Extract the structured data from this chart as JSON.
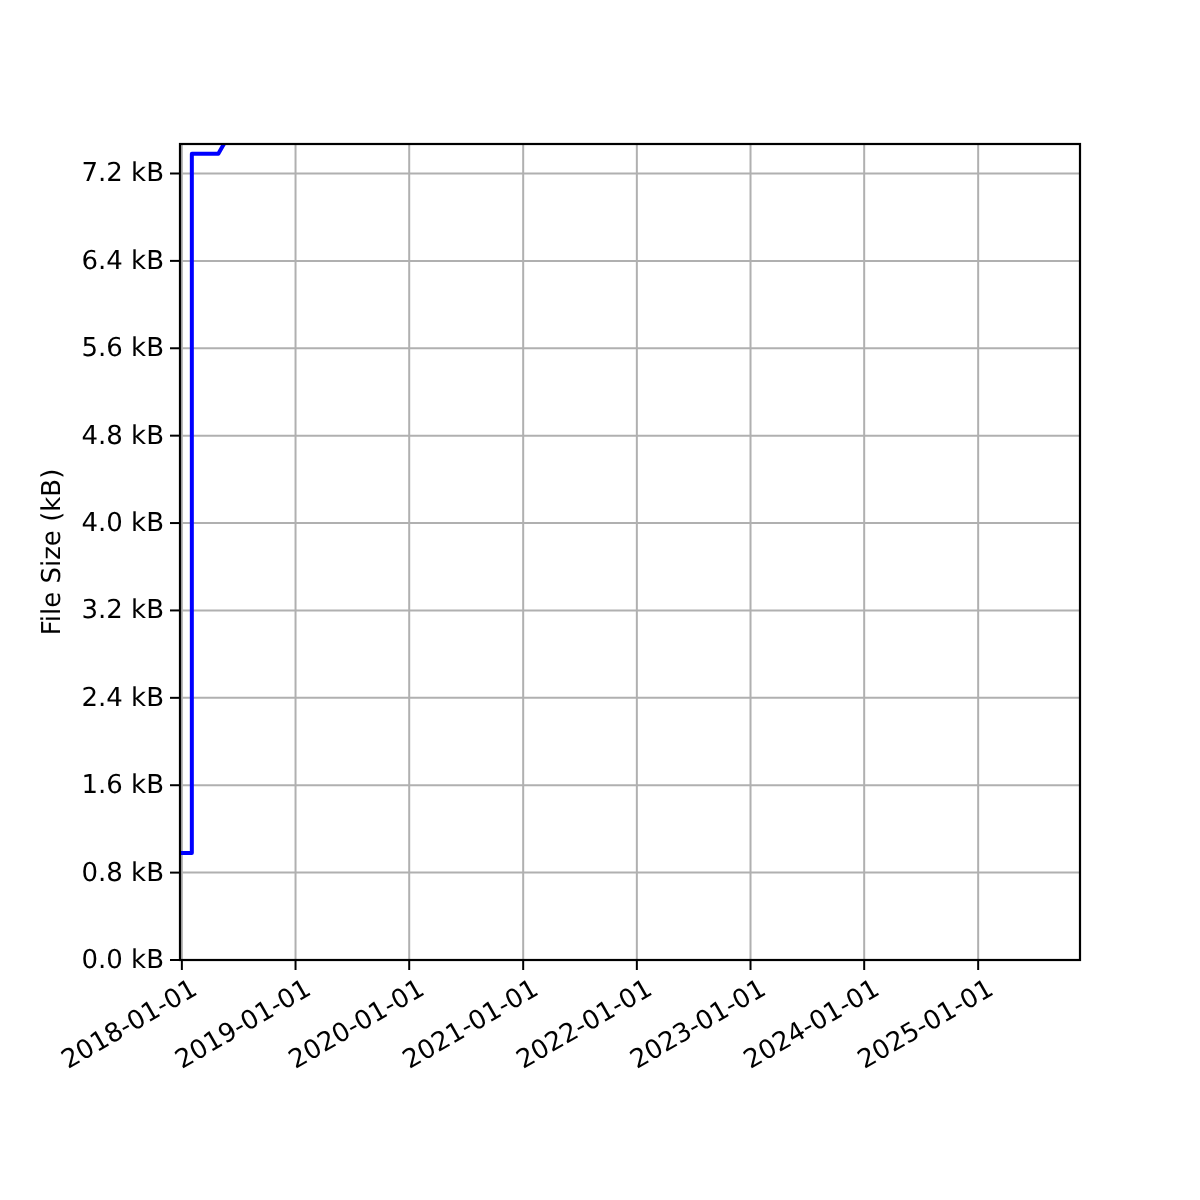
{
  "chart_data": {
    "type": "line",
    "ylabel": "File Size (kB)",
    "x": [
      "2017-12-26",
      "2018-02-02",
      "2018-02-02",
      "2018-04-28",
      "2018-05-16"
    ],
    "series": [
      {
        "color": "#0000ff",
        "values": [
          0.98,
          0.98,
          7.38,
          7.38,
          7.47
        ]
      }
    ],
    "xlim": [
      "2017-12-26",
      "2025-11-24"
    ],
    "xticks": [
      "2018-01-01",
      "2019-01-01",
      "2020-01-01",
      "2021-01-01",
      "2022-01-01",
      "2023-01-01",
      "2024-01-01",
      "2025-01-01"
    ],
    "ylim": [
      0,
      7.47
    ],
    "yticks": [
      {
        "value": 0,
        "label": "0.0 kB"
      },
      {
        "value": 0.8,
        "label": "0.8 kB"
      },
      {
        "value": 1.6,
        "label": "1.6 kB"
      },
      {
        "value": 2.4,
        "label": "2.4 kB"
      },
      {
        "value": 3.2,
        "label": "3.2 kB"
      },
      {
        "value": 4,
        "label": "4.0 kB"
      },
      {
        "value": 4.8,
        "label": "4.8 kB"
      },
      {
        "value": 5.6,
        "label": "5.6 kB"
      },
      {
        "value": 6.4,
        "label": "6.4 kB"
      },
      {
        "value": 7.2,
        "label": "7.2 kB"
      }
    ],
    "grid": true
  }
}
